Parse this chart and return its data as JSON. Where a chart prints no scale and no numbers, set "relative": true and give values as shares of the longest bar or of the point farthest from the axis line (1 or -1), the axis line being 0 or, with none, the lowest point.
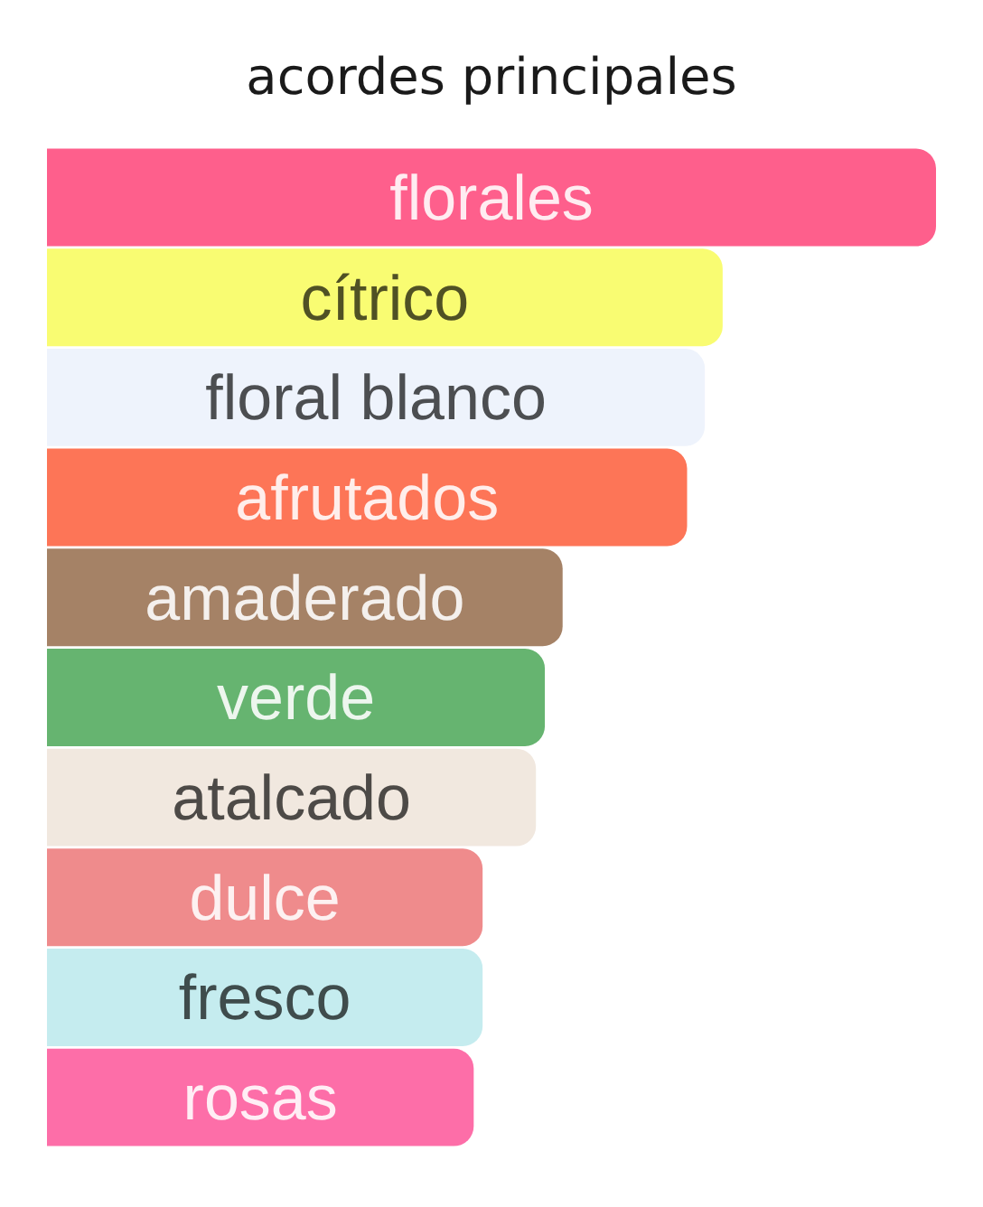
{
  "chart_data": {
    "type": "bar",
    "orientation": "horizontal",
    "relative": true,
    "title": "acordes principales",
    "categories": [
      "florales",
      "cítrico",
      "floral blanco",
      "afrutados",
      "amaderado",
      "verde",
      "atalcado",
      "dulce",
      "fresco",
      "rosas"
    ],
    "values": [
      1,
      0.76,
      0.74,
      0.72,
      0.58,
      0.56,
      0.55,
      0.49,
      0.49,
      0.48
    ],
    "colors": [
      "#fe5f8c",
      "#f9fc72",
      "#eef3fc",
      "#fd7557",
      "#a58266",
      "#66b470",
      "#f1e8df",
      "#ef8b8c",
      "#c5ecef",
      "#fd6ea8"
    ]
  }
}
